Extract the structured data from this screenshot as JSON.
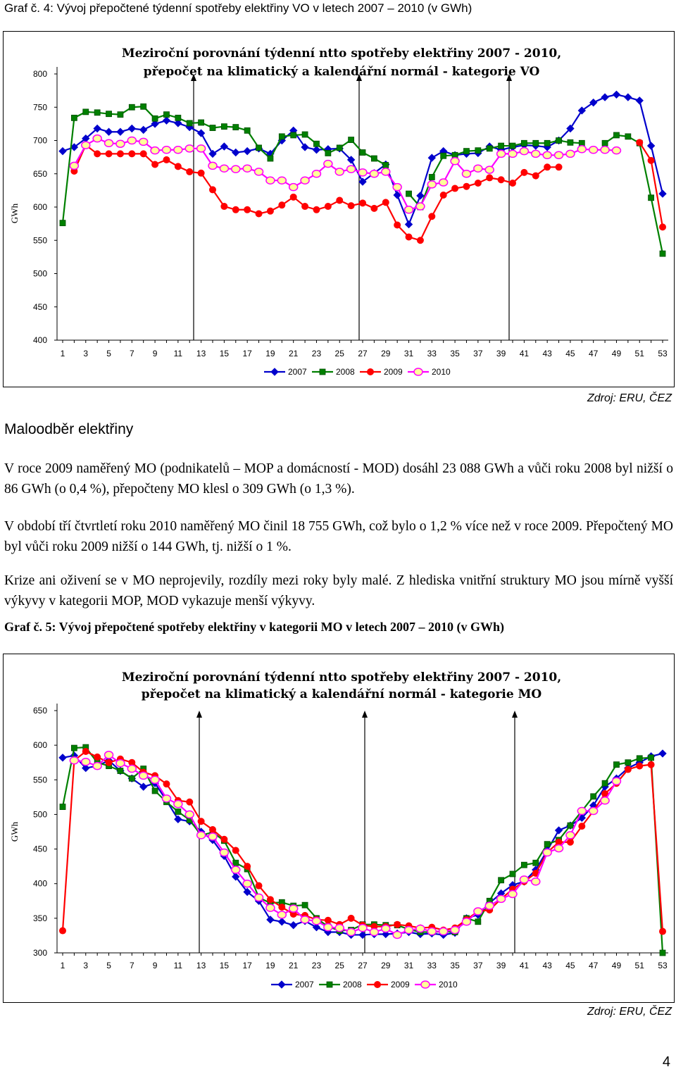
{
  "graf1": {
    "caption": "Graf č. 4: Vývoj přepočtené týdenní spotřeby elektřiny VO v letech 2007 – 2010 (v GWh)",
    "source": "Zdroj: ERU, ČEZ"
  },
  "heading": "Maloodběr elektřiny",
  "paragraphs": [
    "V roce 2009 naměřený MO (podnikatelů – MOP a domácností - MOD) dosáhl 23 088 GWh a vůči roku 2008 byl nižší o 86 GWh (o 0,4 %), přepočteny MO klesl o 309 GWh (o 1,3 %).",
    "V období tří čtvrtletí roku 2010 naměřený MO činil 18 755 GWh, což bylo o 1,2 % více než v roce 2009. Přepočtený MO byl vůči roku 2009 nižší o 144 GWh, tj. nižší o 1 %.",
    "Krize ani oživení se v MO neprojevily, rozdíly mezi roky byly malé. Z hlediska vnitřní struktury MO jsou mírně vyšší výkyvy v kategorii MOP, MOD vykazuje menší výkyvy."
  ],
  "graf2": {
    "caption": "Graf č. 5: Vývoj přepočtené spotřeby elektřiny v kategorii MO v letech 2007 – 2010 (v GWh)",
    "source": "Zdroj: ERU, ČEZ"
  },
  "page_number": "4",
  "chart_data": [
    {
      "type": "line",
      "title": "Meziroční porovnání týdenní ntto spotřeby elektřiny 2007 - 2010,",
      "subtitle": "přepočet na klimatický a kalendářní normál - kategorie VO",
      "ylabel": "GWh",
      "xlabel": "",
      "ylim": [
        400,
        800
      ],
      "yticks": [
        400,
        450,
        500,
        550,
        600,
        650,
        700,
        750,
        800
      ],
      "x": [
        1,
        2,
        3,
        4,
        5,
        6,
        7,
        8,
        9,
        10,
        11,
        12,
        13,
        14,
        15,
        16,
        17,
        18,
        19,
        20,
        21,
        22,
        23,
        24,
        25,
        26,
        27,
        28,
        29,
        30,
        31,
        32,
        33,
        34,
        35,
        36,
        37,
        38,
        39,
        40,
        41,
        42,
        43,
        44,
        45,
        46,
        47,
        48,
        49,
        50,
        51,
        52,
        53
      ],
      "xtick_labels": [
        "1",
        "3",
        "5",
        "7",
        "9",
        "11",
        "13",
        "15",
        "17",
        "19",
        "21",
        "23",
        "25",
        "27",
        "29",
        "31",
        "33",
        "35",
        "37",
        "39",
        "41",
        "43",
        "45",
        "47",
        "49",
        "51",
        "53"
      ],
      "legend": "bottom",
      "grid": false,
      "series": [
        {
          "name": "2007",
          "color": "#0000cc",
          "marker": "diamond",
          "values": [
            684,
            690,
            703,
            718,
            713,
            713,
            718,
            716,
            725,
            730,
            726,
            720,
            711,
            680,
            691,
            682,
            684,
            688,
            680,
            700,
            715,
            690,
            686,
            687,
            688,
            671,
            638,
            651,
            664,
            618,
            574,
            617,
            674,
            684,
            678,
            680,
            681,
            691,
            686,
            690,
            693,
            692,
            690,
            700,
            718,
            745,
            757,
            765,
            769,
            765,
            760,
            692,
            620
          ]
        },
        {
          "name": "2008",
          "color": "#008000",
          "marker": "square",
          "values": [
            576,
            734,
            743,
            742,
            740,
            739,
            750,
            751,
            733,
            739,
            734,
            726,
            727,
            719,
            721,
            720,
            715,
            689,
            673,
            706,
            708,
            709,
            695,
            681,
            689,
            701,
            682,
            673,
            663,
            null,
            620,
            600,
            645,
            677,
            678,
            684,
            685,
            688,
            692,
            692,
            696,
            696,
            696,
            700,
            697,
            696,
            null,
            696,
            708,
            706,
            696,
            614,
            530
          ]
        },
        {
          "name": "2009",
          "color": "#ff0000",
          "marker": "circle",
          "values": [
            null,
            654,
            693,
            680,
            680,
            680,
            680,
            680,
            664,
            671,
            661,
            653,
            651,
            626,
            601,
            596,
            596,
            590,
            594,
            603,
            615,
            601,
            596,
            601,
            610,
            602,
            606,
            598,
            607,
            573,
            555,
            550,
            586,
            618,
            628,
            631,
            636,
            644,
            641,
            636,
            652,
            647,
            660,
            660,
            null,
            null,
            null,
            null,
            null,
            null,
            697,
            670,
            570
          ]
        },
        {
          "name": "2010",
          "color": "#ff00ff",
          "marker": "circle-open",
          "values": [
            null,
            662,
            693,
            703,
            696,
            695,
            700,
            698,
            685,
            686,
            686,
            688,
            688,
            662,
            658,
            657,
            658,
            653,
            640,
            640,
            630,
            640,
            650,
            665,
            653,
            657,
            652,
            650,
            653,
            630,
            596,
            601,
            634,
            637,
            669,
            650,
            658,
            656,
            680,
            680,
            684,
            680,
            678,
            678,
            680,
            687,
            686,
            686,
            685,
            null,
            null,
            null,
            null
          ]
        }
      ]
    },
    {
      "type": "line",
      "title": "Meziroční porovnání týdenní ntto spotřeby elektřiny 2007 - 2010,",
      "subtitle": "přepočet na klimatický a kalendářní normál - kategorie MO",
      "ylabel": "GWh",
      "xlabel": "",
      "ylim": [
        300,
        650
      ],
      "yticks": [
        300,
        350,
        400,
        450,
        500,
        550,
        600,
        650
      ],
      "x": [
        1,
        2,
        3,
        4,
        5,
        6,
        7,
        8,
        9,
        10,
        11,
        12,
        13,
        14,
        15,
        16,
        17,
        18,
        19,
        20,
        21,
        22,
        23,
        24,
        25,
        26,
        27,
        28,
        29,
        30,
        31,
        32,
        33,
        34,
        35,
        36,
        37,
        38,
        39,
        40,
        41,
        42,
        43,
        44,
        45,
        46,
        47,
        48,
        49,
        50,
        51,
        52,
        53
      ],
      "xtick_labels": [
        "1",
        "3",
        "5",
        "7",
        "9",
        "11",
        "13",
        "15",
        "17",
        "19",
        "21",
        "23",
        "25",
        "27",
        "29",
        "31",
        "33",
        "35",
        "37",
        "39",
        "41",
        "43",
        "45",
        "47",
        "49",
        "51",
        "53"
      ],
      "legend": "bottom",
      "grid": false,
      "series": [
        {
          "name": "2007",
          "color": "#0000cc",
          "marker": "diamond",
          "values": [
            582,
            585,
            567,
            570,
            578,
            563,
            552,
            540,
            545,
            520,
            493,
            490,
            475,
            463,
            440,
            410,
            388,
            375,
            348,
            345,
            340,
            346,
            337,
            330,
            330,
            326,
            326,
            327,
            327,
            328,
            330,
            327,
            328,
            326,
            329,
            350,
            355,
            372,
            386,
            398,
            403,
            420,
            448,
            477,
            484,
            495,
            513,
            540,
            552,
            567,
            575,
            584,
            588
          ]
        },
        {
          "name": "2008",
          "color": "#008000",
          "marker": "square",
          "values": [
            511,
            596,
            597,
            575,
            570,
            563,
            552,
            566,
            534,
            518,
            504,
            492,
            470,
            474,
            462,
            430,
            421,
            380,
            372,
            373,
            368,
            369,
            350,
            338,
            332,
            333,
            341,
            341,
            340,
            340,
            334,
            330,
            330,
            331,
            330,
            350,
            345,
            375,
            405,
            414,
            427,
            430,
            457,
            463,
            484,
            505,
            526,
            545,
            572,
            575,
            581,
            582,
            300
          ]
        },
        {
          "name": "2009",
          "color": "#ff0000",
          "marker": "circle",
          "values": [
            332,
            578,
            591,
            583,
            575,
            580,
            575,
            561,
            556,
            544,
            520,
            518,
            490,
            478,
            464,
            448,
            425,
            397,
            377,
            366,
            356,
            354,
            348,
            347,
            341,
            350,
            340,
            338,
            338,
            341,
            339,
            336,
            337,
            333,
            336,
            348,
            360,
            362,
            378,
            392,
            403,
            415,
            445,
            460,
            460,
            483,
            505,
            530,
            545,
            565,
            570,
            572,
            331
          ]
        },
        {
          "name": "2010",
          "color": "#ff00ff",
          "marker": "circle-open",
          "values": [
            null,
            578,
            576,
            570,
            586,
            574,
            566,
            556,
            550,
            523,
            515,
            500,
            470,
            468,
            445,
            420,
            400,
            380,
            365,
            355,
            364,
            348,
            346,
            337,
            336,
            330,
            336,
            330,
            335,
            326,
            333,
            335,
            331,
            331,
            333,
            345,
            360,
            368,
            378,
            385,
            406,
            403,
            445,
            451,
            470,
            505,
            505,
            520,
            548,
            null,
            null,
            null,
            null
          ]
        }
      ]
    }
  ]
}
